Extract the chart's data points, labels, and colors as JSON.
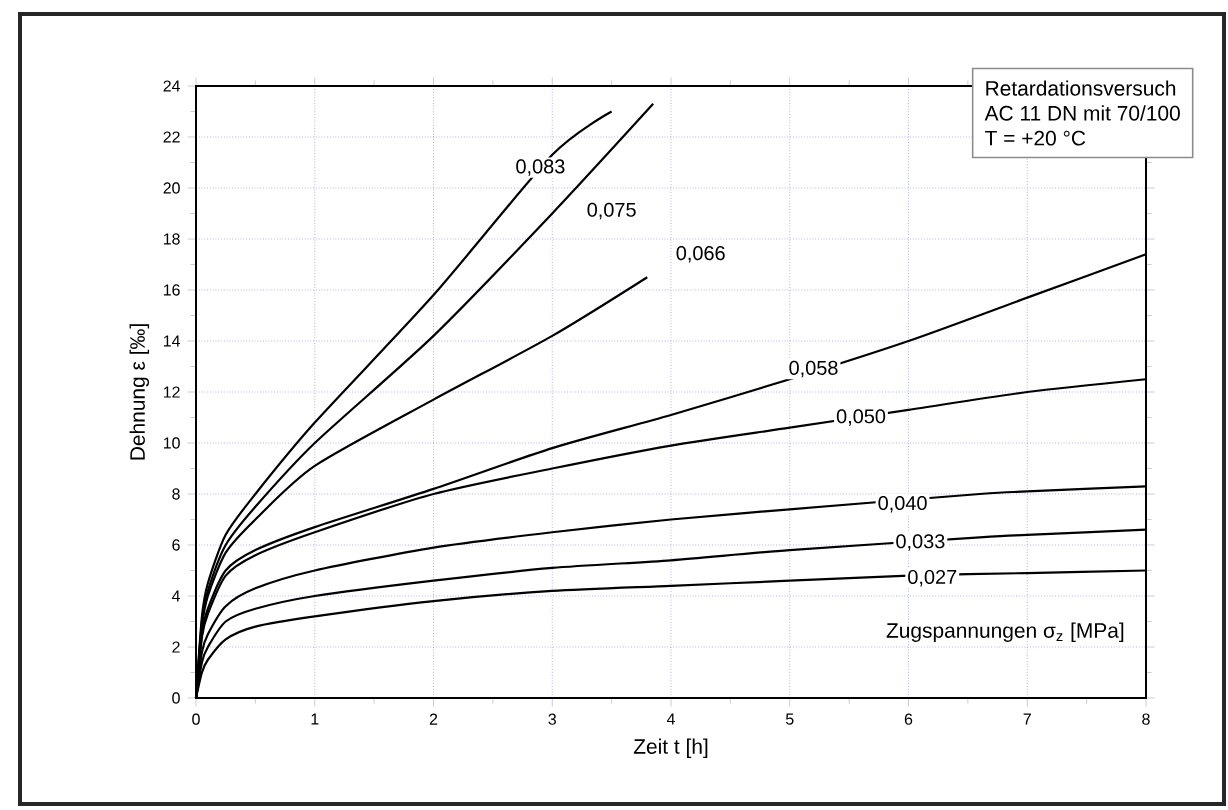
{
  "chart_data": {
    "type": "line",
    "xlabel": "Zeit t [h]",
    "ylabel": "Dehnung ε [‰]",
    "xlim": [
      0,
      8
    ],
    "ylim": [
      0,
      24
    ],
    "xticks": [
      0,
      1,
      2,
      3,
      4,
      5,
      6,
      7,
      8
    ],
    "yticks": [
      0,
      2,
      4,
      6,
      8,
      10,
      12,
      14,
      16,
      18,
      20,
      22,
      24
    ],
    "grid": true,
    "marker": "none",
    "line_style": "solid",
    "series": [
      {
        "color": "#000000",
        "x": [
          0,
          0.05,
          0.1,
          0.25,
          0.5,
          1,
          2,
          3,
          4,
          5,
          6,
          7,
          8
        ],
        "values": [
          0,
          1.0,
          1.5,
          2.3,
          2.8,
          3.2,
          3.8,
          4.2,
          4.4,
          4.6,
          4.8,
          4.9,
          5.0
        ]
      },
      {
        "color": "#000000",
        "x": [
          0,
          0.05,
          0.1,
          0.25,
          0.5,
          1,
          2,
          3,
          4,
          5,
          6.6,
          7,
          8
        ],
        "values": [
          0,
          1.4,
          2.0,
          3.0,
          3.5,
          4.0,
          4.6,
          5.1,
          5.4,
          5.8,
          6.3,
          6.4,
          6.6
        ]
      },
      {
        "color": "#000000",
        "x": [
          0,
          0.05,
          0.1,
          0.25,
          0.5,
          1,
          2,
          3,
          4,
          5,
          6.6,
          7,
          8
        ],
        "values": [
          0,
          1.8,
          2.5,
          3.6,
          4.3,
          5.0,
          5.9,
          6.5,
          7.0,
          7.4,
          8.0,
          8.1,
          8.3
        ]
      },
      {
        "color": "#000000",
        "x": [
          0,
          0.05,
          0.1,
          0.25,
          0.5,
          1,
          2,
          3,
          4,
          5,
          6,
          7,
          8
        ],
        "values": [
          0,
          2.4,
          3.3,
          4.8,
          5.6,
          6.5,
          8.0,
          9.0,
          9.9,
          10.6,
          11.3,
          12.0,
          12.5
        ]
      },
      {
        "color": "#000000",
        "x": [
          0,
          0.05,
          0.1,
          0.25,
          0.5,
          1,
          2,
          3,
          4,
          5,
          6,
          7,
          8
        ],
        "values": [
          0,
          2.5,
          3.5,
          5.0,
          5.8,
          6.7,
          8.2,
          9.8,
          11.1,
          12.5,
          14.0,
          15.7,
          17.4
        ]
      },
      {
        "color": "#000000",
        "x": [
          0,
          0.05,
          0.1,
          0.25,
          0.5,
          1,
          2,
          3,
          3.8
        ],
        "values": [
          0,
          2.8,
          4.0,
          5.7,
          7.0,
          9.1,
          11.7,
          14.2,
          16.5
        ]
      },
      {
        "color": "#000000",
        "x": [
          0,
          0.05,
          0.1,
          0.25,
          0.5,
          1,
          2,
          3,
          3.85
        ],
        "values": [
          0,
          3.0,
          4.2,
          6.0,
          7.5,
          10.0,
          14.2,
          19.0,
          23.3
        ]
      },
      {
        "color": "#000000",
        "x": [
          0,
          0.05,
          0.1,
          0.25,
          0.5,
          1,
          2,
          3,
          3.5
        ],
        "values": [
          0,
          3.2,
          4.5,
          6.4,
          8.0,
          10.8,
          15.8,
          21.3,
          23.0
        ]
      }
    ],
    "annotations": [
      {
        "text": "0,027",
        "x": 6.2,
        "y": 4.7
      },
      {
        "text": "0,033",
        "x": 6.1,
        "y": 6.1
      },
      {
        "text": "0,040",
        "x": 5.95,
        "y": 7.6
      },
      {
        "text": "0,050",
        "x": 5.6,
        "y": 11.0
      },
      {
        "text": "0,058",
        "x": 5.2,
        "y": 12.9
      },
      {
        "text": "0,066",
        "x": 4.25,
        "y": 17.4
      },
      {
        "text": "0,075",
        "x": 3.5,
        "y": 19.1
      },
      {
        "text": "0,083",
        "x": 2.9,
        "y": 20.8
      },
      "Retardationsversuch",
      "AC 11 DN mit 70/100",
      "T = +20 °C",
      "Zugspannungen σ$_{z}$ [MPa]"
    ]
  }
}
